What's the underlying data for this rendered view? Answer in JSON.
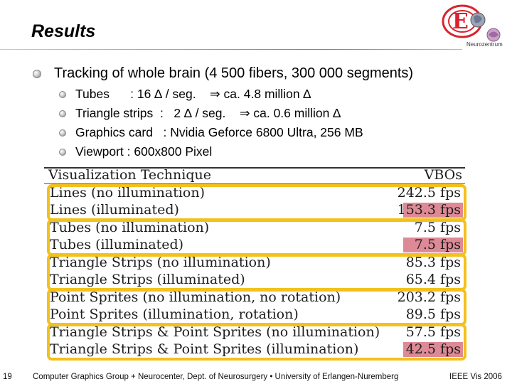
{
  "slide": {
    "title": "Results",
    "page_number": "19",
    "main_point": "Tracking of whole brain (4 500 fibers, 300 000 segments)",
    "sub_points": [
      "Tubes      : 16 ∆ / seg.    ⇒ ca. 4.8 million ∆",
      "Triangle strips  :   2 ∆ / seg.    ⇒ ca. 0.6 million ∆",
      "Graphics card   : Nvidia Geforce 6800 Ultra, 256 MB",
      "Viewport : 600x800 Pixel"
    ],
    "footer_left": "Computer Graphics Group + Neurocenter, Dept. of Neurosurgery • University of Erlangen-Nuremberg",
    "footer_right": "IEEE Vis 2006",
    "logo_caption": "Neurozentrum"
  },
  "results_table": {
    "header": {
      "technique": "Visualization Technique",
      "vbos": "VBOs"
    },
    "rows": [
      {
        "technique": "Lines (no illumination)",
        "vbos": "242.5 fps",
        "highlighted": false
      },
      {
        "technique": "Lines (illuminated)",
        "vbos": "153.3 fps",
        "highlighted": true
      },
      {
        "technique": "Tubes (no illumination)",
        "vbos": "7.5 fps",
        "highlighted": false
      },
      {
        "technique": "Tubes (illuminated)",
        "vbos": "7.5 fps",
        "highlighted": true
      },
      {
        "technique": "Triangle Strips (no illumination)",
        "vbos": "85.3 fps",
        "highlighted": false
      },
      {
        "technique": "Triangle Strips (illuminated)",
        "vbos": "65.4 fps",
        "highlighted": false
      },
      {
        "technique": "Point Sprites (no illumination, no rotation)",
        "vbos": "203.2 fps",
        "highlighted": false
      },
      {
        "technique": "Point Sprites (illumination, rotation)",
        "vbos": "89.5 fps",
        "highlighted": false
      },
      {
        "technique": "Triangle Strips & Point Sprites (no illumination)",
        "vbos": "57.5 fps",
        "highlighted": false
      },
      {
        "technique": "Triangle Strips & Point Sprites (illumination)",
        "vbos": "42.5 fps",
        "highlighted": true
      }
    ]
  },
  "colors": {
    "group_outline": "#f3c11c",
    "highlight_cell": "#de8a96",
    "logo_red": "#d9232e"
  }
}
